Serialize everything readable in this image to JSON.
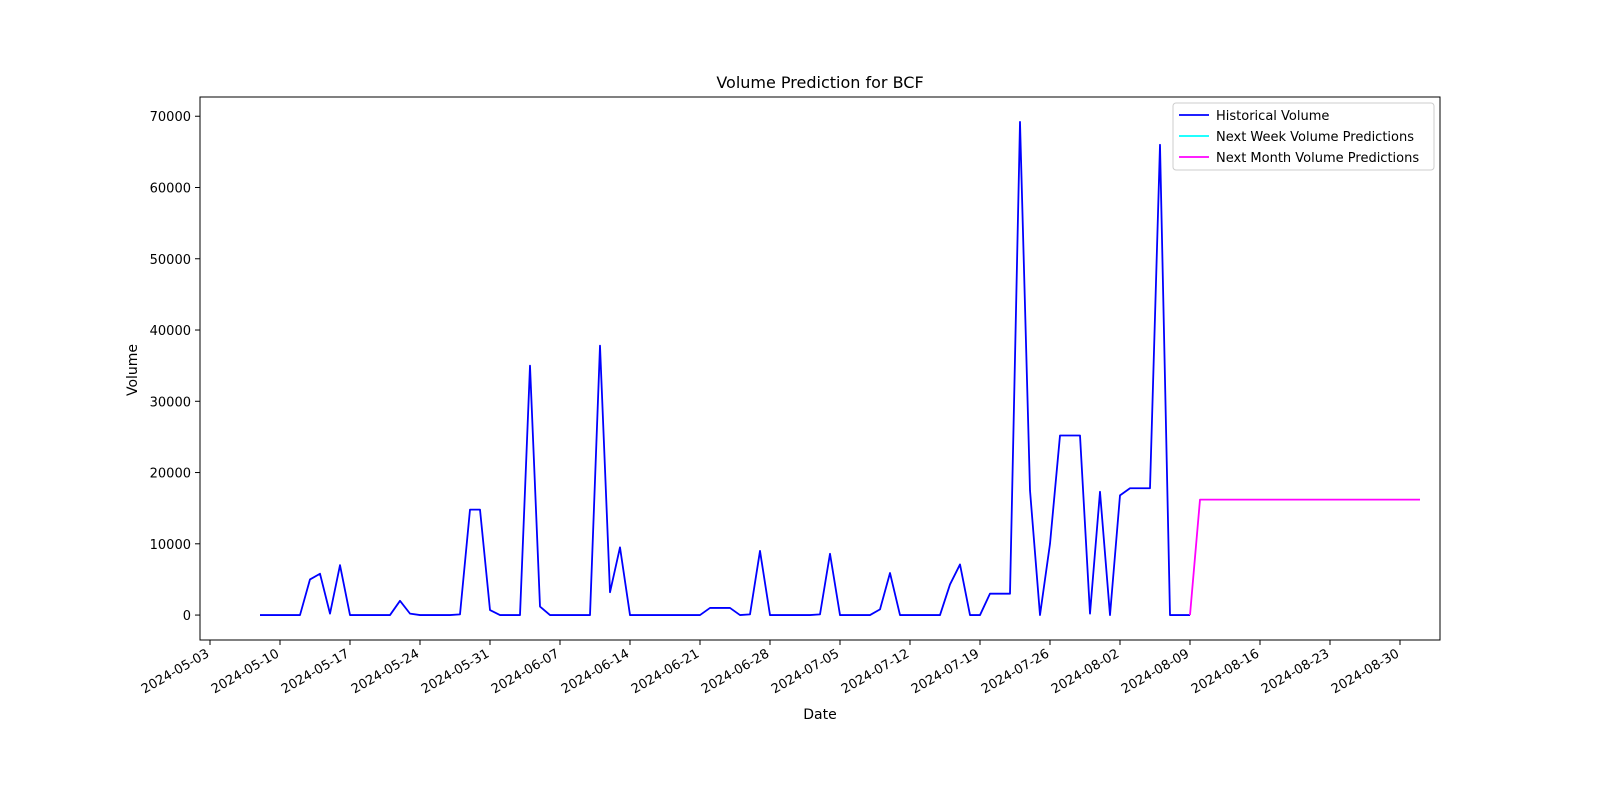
{
  "chart_data": {
    "type": "line",
    "title": "Volume Prediction for BCF",
    "xlabel": "Date",
    "ylabel": "Volume",
    "xlim": [
      "2024-05-02",
      "2024-09-03"
    ],
    "ylim": [
      -3500,
      72700
    ],
    "x_ticks": [
      "2024-05-03",
      "2024-05-10",
      "2024-05-17",
      "2024-05-24",
      "2024-05-31",
      "2024-06-07",
      "2024-06-14",
      "2024-06-21",
      "2024-06-28",
      "2024-07-05",
      "2024-07-12",
      "2024-07-19",
      "2024-07-26",
      "2024-08-02",
      "2024-08-09",
      "2024-08-16",
      "2024-08-23",
      "2024-08-30"
    ],
    "y_ticks": [
      0,
      10000,
      20000,
      30000,
      40000,
      50000,
      60000,
      70000
    ],
    "y_tick_labels": [
      "0",
      "10000",
      "20000",
      "30000",
      "40000",
      "50000",
      "60000",
      "70000"
    ],
    "grid": false,
    "legend_position": "top-right",
    "series": [
      {
        "name": "Historical Volume",
        "color": "#0000ff",
        "points": [
          [
            "2024-05-08",
            0
          ],
          [
            "2024-05-09",
            0
          ],
          [
            "2024-05-10",
            0
          ],
          [
            "2024-05-11",
            0
          ],
          [
            "2024-05-12",
            0
          ],
          [
            "2024-05-13",
            5000
          ],
          [
            "2024-05-14",
            5800
          ],
          [
            "2024-05-15",
            200
          ],
          [
            "2024-05-16",
            7000
          ],
          [
            "2024-05-17",
            0
          ],
          [
            "2024-05-18",
            0
          ],
          [
            "2024-05-19",
            0
          ],
          [
            "2024-05-20",
            0
          ],
          [
            "2024-05-21",
            0
          ],
          [
            "2024-05-22",
            2000
          ],
          [
            "2024-05-23",
            200
          ],
          [
            "2024-05-24",
            0
          ],
          [
            "2024-05-25",
            0
          ],
          [
            "2024-05-26",
            0
          ],
          [
            "2024-05-27",
            0
          ],
          [
            "2024-05-28",
            100
          ],
          [
            "2024-05-29",
            14800
          ],
          [
            "2024-05-30",
            14800
          ],
          [
            "2024-05-31",
            700
          ],
          [
            "2024-06-01",
            0
          ],
          [
            "2024-06-02",
            0
          ],
          [
            "2024-06-03",
            0
          ],
          [
            "2024-06-04",
            35000
          ],
          [
            "2024-06-05",
            1200
          ],
          [
            "2024-06-06",
            0
          ],
          [
            "2024-06-07",
            0
          ],
          [
            "2024-06-08",
            0
          ],
          [
            "2024-06-09",
            0
          ],
          [
            "2024-06-10",
            0
          ],
          [
            "2024-06-11",
            37800
          ],
          [
            "2024-06-12",
            3200
          ],
          [
            "2024-06-13",
            9500
          ],
          [
            "2024-06-14",
            0
          ],
          [
            "2024-06-15",
            0
          ],
          [
            "2024-06-16",
            0
          ],
          [
            "2024-06-17",
            0
          ],
          [
            "2024-06-18",
            0
          ],
          [
            "2024-06-19",
            0
          ],
          [
            "2024-06-20",
            0
          ],
          [
            "2024-06-21",
            0
          ],
          [
            "2024-06-22",
            1000
          ],
          [
            "2024-06-23",
            1000
          ],
          [
            "2024-06-24",
            1000
          ],
          [
            "2024-06-25",
            0
          ],
          [
            "2024-06-26",
            100
          ],
          [
            "2024-06-27",
            9000
          ],
          [
            "2024-06-28",
            0
          ],
          [
            "2024-06-29",
            0
          ],
          [
            "2024-06-30",
            0
          ],
          [
            "2024-07-01",
            0
          ],
          [
            "2024-07-02",
            0
          ],
          [
            "2024-07-03",
            100
          ],
          [
            "2024-07-04",
            8600
          ],
          [
            "2024-07-05",
            0
          ],
          [
            "2024-07-06",
            0
          ],
          [
            "2024-07-07",
            0
          ],
          [
            "2024-07-08",
            0
          ],
          [
            "2024-07-09",
            800
          ],
          [
            "2024-07-10",
            5900
          ],
          [
            "2024-07-11",
            0
          ],
          [
            "2024-07-12",
            0
          ],
          [
            "2024-07-13",
            0
          ],
          [
            "2024-07-14",
            0
          ],
          [
            "2024-07-15",
            0
          ],
          [
            "2024-07-16",
            4300
          ],
          [
            "2024-07-17",
            7100
          ],
          [
            "2024-07-18",
            0
          ],
          [
            "2024-07-19",
            0
          ],
          [
            "2024-07-20",
            3000
          ],
          [
            "2024-07-21",
            3000
          ],
          [
            "2024-07-22",
            3000
          ],
          [
            "2024-07-23",
            69200
          ],
          [
            "2024-07-24",
            17500
          ],
          [
            "2024-07-25",
            0
          ],
          [
            "2024-07-26",
            10000
          ],
          [
            "2024-07-27",
            25200
          ],
          [
            "2024-07-28",
            25200
          ],
          [
            "2024-07-29",
            25200
          ],
          [
            "2024-07-30",
            200
          ],
          [
            "2024-07-31",
            17300
          ],
          [
            "2024-08-01",
            0
          ],
          [
            "2024-08-02",
            16800
          ],
          [
            "2024-08-03",
            17800
          ],
          [
            "2024-08-04",
            17800
          ],
          [
            "2024-08-05",
            17800
          ],
          [
            "2024-08-06",
            66000
          ],
          [
            "2024-08-07",
            0
          ],
          [
            "2024-08-08",
            0
          ],
          [
            "2024-08-09",
            0
          ]
        ]
      },
      {
        "name": "Next Week Volume Predictions",
        "color": "#00ffff",
        "points": []
      },
      {
        "name": "Next Month Volume Predictions",
        "color": "#ff00ff",
        "points": [
          [
            "2024-08-09",
            0
          ],
          [
            "2024-08-10",
            16200
          ],
          [
            "2024-09-01",
            16200
          ]
        ]
      }
    ]
  }
}
